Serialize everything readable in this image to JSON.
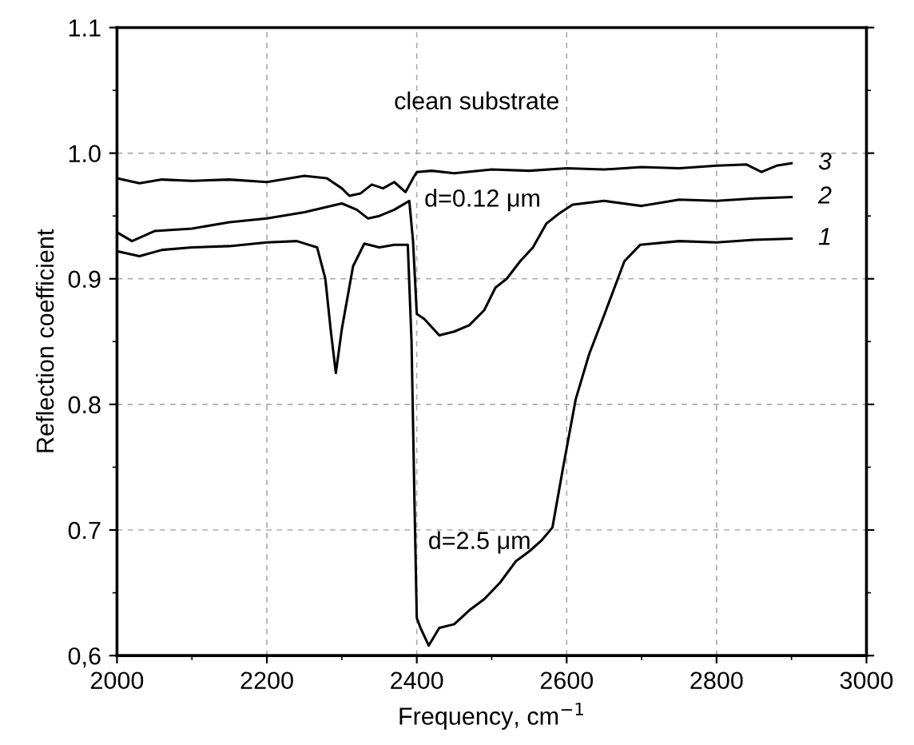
{
  "chart_data": {
    "type": "line",
    "xlabel": "Frequency, cm$^{−1}$",
    "ylabel": "Reflection coefficient",
    "xlim": [
      2000,
      3000
    ],
    "ylim": [
      0.6,
      1.1
    ],
    "xticks": [
      2000,
      2200,
      2400,
      2600,
      2800,
      3000
    ],
    "yticks": [
      {
        "value": 0.6,
        "label": "0,6"
      },
      0.7,
      0.8,
      0.9,
      {
        "value": 1.0,
        "label": "1.0"
      },
      1.1
    ],
    "grid": true,
    "legend": "right",
    "marker": "none",
    "line_style": "solid",
    "annotations": [
      "clean substrate",
      "d=0.12 μm",
      "d=2.5 μm"
    ],
    "series": [
      {
        "name": "3",
        "color": "#000000",
        "x": [
          2000,
          2030,
          2060,
          2100,
          2150,
          2200,
          2250,
          2280,
          2300,
          2310,
          2325,
          2340,
          2355,
          2370,
          2385,
          2395,
          2400,
          2420,
          2450,
          2500,
          2550,
          2600,
          2650,
          2700,
          2750,
          2800,
          2840,
          2860,
          2880,
          2900
        ],
        "values": [
          0.98,
          0.976,
          0.979,
          0.978,
          0.979,
          0.977,
          0.982,
          0.98,
          0.972,
          0.966,
          0.968,
          0.975,
          0.972,
          0.977,
          0.969,
          0.98,
          0.985,
          0.986,
          0.984,
          0.987,
          0.986,
          0.988,
          0.987,
          0.989,
          0.988,
          0.99,
          0.991,
          0.985,
          0.99,
          0.992
        ]
      },
      {
        "name": "2",
        "color": "#000000",
        "x": [
          2000,
          2020,
          2050,
          2100,
          2150,
          2200,
          2250,
          2300,
          2320,
          2335,
          2350,
          2370,
          2390,
          2395,
          2400,
          2410,
          2430,
          2450,
          2470,
          2490,
          2505,
          2520,
          2538,
          2555,
          2573,
          2590,
          2608,
          2650,
          2700,
          2750,
          2800,
          2850,
          2900
        ],
        "values": [
          0.937,
          0.93,
          0.938,
          0.94,
          0.945,
          0.948,
          0.953,
          0.96,
          0.955,
          0.948,
          0.95,
          0.955,
          0.962,
          0.93,
          0.872,
          0.868,
          0.855,
          0.858,
          0.863,
          0.875,
          0.893,
          0.9,
          0.914,
          0.925,
          0.944,
          0.952,
          0.959,
          0.962,
          0.958,
          0.963,
          0.962,
          0.964,
          0.965
        ]
      },
      {
        "name": "1",
        "color": "#000000",
        "x": [
          2000,
          2030,
          2060,
          2100,
          2150,
          2200,
          2240,
          2267,
          2278,
          2285,
          2292,
          2300,
          2315,
          2330,
          2350,
          2370,
          2388,
          2393,
          2397,
          2400,
          2405,
          2416,
          2430,
          2450,
          2470,
          2490,
          2511,
          2532,
          2550,
          2567,
          2581,
          2595,
          2612,
          2630,
          2650,
          2677,
          2698,
          2750,
          2800,
          2850,
          2900
        ],
        "values": [
          0.922,
          0.918,
          0.923,
          0.925,
          0.926,
          0.929,
          0.93,
          0.925,
          0.9,
          0.86,
          0.825,
          0.86,
          0.91,
          0.928,
          0.925,
          0.927,
          0.927,
          0.85,
          0.72,
          0.63,
          0.622,
          0.608,
          0.622,
          0.625,
          0.636,
          0.645,
          0.658,
          0.675,
          0.683,
          0.692,
          0.702,
          0.749,
          0.804,
          0.84,
          0.871,
          0.914,
          0.927,
          0.93,
          0.929,
          0.931,
          0.932
        ]
      }
    ]
  }
}
